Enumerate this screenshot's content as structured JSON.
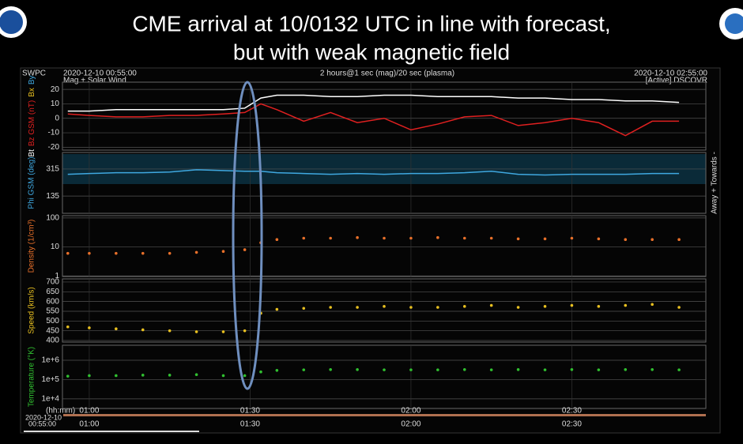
{
  "header": {
    "title": [
      "CME arrival at 10/0132 UTC in line with forecast,",
      "but with weak magnetic field"
    ],
    "source": "SWPC",
    "product": "Mag + Solar Wind",
    "cadence": "2 hours@1 sec (mag)/20 sec (plasma)",
    "status": "[Active] DSCOVR"
  },
  "footer": {
    "axis_unit": "(hh:mm)",
    "start_date": "2020-12-10",
    "start_time": "00:55:00"
  },
  "chart_data": [
    {
      "type": "line",
      "ylabel_parts": [
        {
          "text": "Bt",
          "color": "#ffffff"
        },
        {
          "text": "Bz GSM (nT)",
          "color": "#e02020"
        },
        {
          "text": "Bx",
          "color": "#e8c020"
        },
        {
          "text": "By",
          "color": "#3fa8e0"
        }
      ],
      "xlim": [
        "2020-12-10 00:55:00",
        "2020-12-10 02:55:00"
      ],
      "xticks": [
        "01:00",
        "01:30",
        "02:00",
        "02:30"
      ],
      "ylim": [
        -22,
        25
      ],
      "yticks": [
        20,
        10,
        0,
        -10,
        -20
      ],
      "grid": true,
      "x": [
        "00:56",
        "01:00",
        "01:05",
        "01:10",
        "01:15",
        "01:20",
        "01:25",
        "01:29",
        "01:32",
        "01:35",
        "01:40",
        "01:45",
        "01:50",
        "01:55",
        "02:00",
        "02:05",
        "02:10",
        "02:15",
        "02:20",
        "02:25",
        "02:30",
        "02:35",
        "02:40",
        "02:45",
        "02:50"
      ],
      "series": [
        {
          "name": "Bt",
          "color": "#ffffff",
          "values": [
            5,
            5,
            6,
            6,
            6,
            6,
            6,
            7,
            14,
            16,
            16,
            15,
            15,
            16,
            16,
            15,
            15,
            15,
            14,
            14,
            13,
            13,
            12,
            12,
            11
          ]
        },
        {
          "name": "Bz",
          "color": "#e02020",
          "values": [
            3,
            2,
            1,
            1,
            2,
            2,
            3,
            4,
            10,
            6,
            -2,
            4,
            -3,
            0,
            -8,
            -4,
            1,
            2,
            -5,
            -3,
            0,
            -3,
            -12,
            -2,
            -2
          ]
        }
      ]
    },
    {
      "type": "line",
      "ylabel": "Phi GSM (deg)",
      "side_label": "Away + Towards -",
      "xlim": [
        "2020-12-10 00:55:00",
        "2020-12-10 02:55:00"
      ],
      "xticks": [
        "01:00",
        "01:30",
        "02:00",
        "02:30"
      ],
      "ylim": [
        20,
        425
      ],
      "yticks": [
        315,
        135
      ],
      "grid": true,
      "x": [
        "00:56",
        "01:00",
        "01:05",
        "01:10",
        "01:15",
        "01:20",
        "01:25",
        "01:29",
        "01:32",
        "01:35",
        "01:40",
        "01:45",
        "01:50",
        "01:55",
        "02:00",
        "02:05",
        "02:10",
        "02:15",
        "02:20",
        "02:25",
        "02:30",
        "02:35",
        "02:40",
        "02:45",
        "02:50"
      ],
      "series": [
        {
          "name": "Phi",
          "color": "#3fa8e0",
          "values": [
            280,
            285,
            290,
            290,
            295,
            310,
            305,
            300,
            300,
            290,
            285,
            280,
            285,
            280,
            285,
            285,
            290,
            300,
            280,
            275,
            280,
            280,
            280,
            285,
            285
          ]
        }
      ]
    },
    {
      "type": "scatter",
      "ylabel": "Density (1/cm³)",
      "log": true,
      "xlim": [
        "2020-12-10 00:55:00",
        "2020-12-10 02:55:00"
      ],
      "xticks": [
        "01:00",
        "01:30",
        "02:00",
        "02:30"
      ],
      "ylim": [
        0.95,
        120
      ],
      "yticks": [
        100,
        10,
        1
      ],
      "grid": true,
      "x": [
        "00:56",
        "01:00",
        "01:05",
        "01:10",
        "01:15",
        "01:20",
        "01:25",
        "01:29",
        "01:32",
        "01:35",
        "01:40",
        "01:45",
        "01:50",
        "01:55",
        "02:00",
        "02:05",
        "02:10",
        "02:15",
        "02:20",
        "02:25",
        "02:30",
        "02:35",
        "02:40",
        "02:45",
        "02:50"
      ],
      "series": [
        {
          "name": "Density",
          "color": "#e8702a",
          "values": [
            6,
            6,
            6,
            6,
            6,
            6.5,
            7,
            8,
            14,
            18,
            20,
            20,
            21,
            20,
            20,
            21,
            20,
            20,
            19,
            19,
            20,
            19,
            18,
            18,
            18
          ]
        }
      ]
    },
    {
      "type": "scatter",
      "ylabel": "Speed (km/s)",
      "xlim": [
        "2020-12-10 00:55:00",
        "2020-12-10 02:55:00"
      ],
      "xticks": [
        "01:00",
        "01:30",
        "02:00",
        "02:30"
      ],
      "ylim": [
        392,
        716
      ],
      "yticks": [
        700,
        650,
        600,
        550,
        500,
        450,
        400
      ],
      "grid": true,
      "x": [
        "00:56",
        "01:00",
        "01:05",
        "01:10",
        "01:15",
        "01:20",
        "01:25",
        "01:29",
        "01:32",
        "01:35",
        "01:40",
        "01:45",
        "01:50",
        "01:55",
        "02:00",
        "02:05",
        "02:10",
        "02:15",
        "02:20",
        "02:25",
        "02:30",
        "02:35",
        "02:40",
        "02:45",
        "02:50"
      ],
      "series": [
        {
          "name": "Speed",
          "color": "#e8c020",
          "values": [
            470,
            465,
            460,
            455,
            450,
            445,
            445,
            450,
            540,
            560,
            565,
            570,
            570,
            575,
            570,
            570,
            575,
            580,
            570,
            575,
            580,
            575,
            580,
            585,
            570
          ]
        }
      ]
    },
    {
      "type": "scatter",
      "ylabel": "Temperature (°K)",
      "log": true,
      "xlim": [
        "2020-12-10 00:55:00",
        "2020-12-10 02:55:00"
      ],
      "xticks": [
        "01:00",
        "01:30",
        "02:00",
        "02:30"
      ],
      "ylim": [
        3200,
        6000000
      ],
      "yticks": [
        {
          "value": 1000000,
          "label": "1e+6"
        },
        {
          "value": 100000,
          "label": "1e+5"
        },
        {
          "value": 10000,
          "label": "1e+4"
        }
      ],
      "grid": true,
      "x": [
        "00:56",
        "01:00",
        "01:05",
        "01:10",
        "01:15",
        "01:20",
        "01:25",
        "01:29",
        "01:32",
        "01:35",
        "01:40",
        "01:45",
        "01:50",
        "01:55",
        "02:00",
        "02:05",
        "02:10",
        "02:15",
        "02:20",
        "02:25",
        "02:30",
        "02:35",
        "02:40",
        "02:45",
        "02:50"
      ],
      "series": [
        {
          "name": "Temperature",
          "color": "#30c030",
          "values": [
            150000,
            160000,
            160000,
            170000,
            170000,
            180000,
            160000,
            160000,
            250000,
            300000,
            320000,
            330000,
            330000,
            320000,
            320000,
            320000,
            330000,
            320000,
            330000,
            320000,
            330000,
            320000,
            330000,
            330000,
            320000
          ]
        }
      ]
    }
  ]
}
